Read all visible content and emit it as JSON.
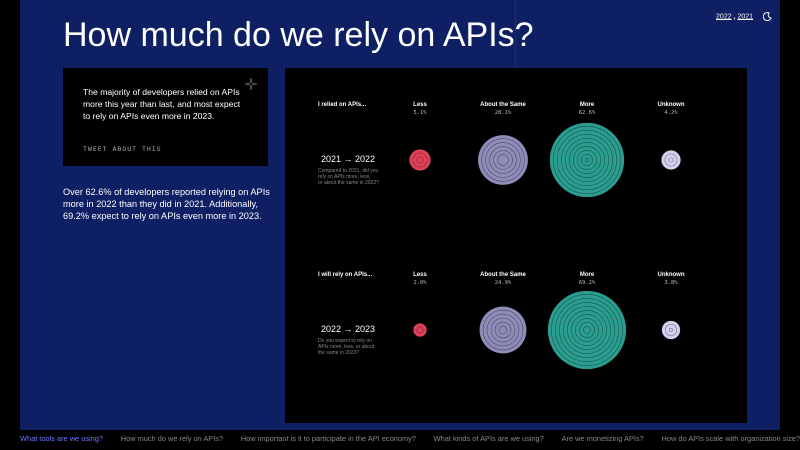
{
  "header": {
    "years": [
      "2022",
      "2021"
    ],
    "separator": ","
  },
  "title": "How much do we rely on APIs?",
  "callout": {
    "text": "The majority of developers relied on APIs more this year than last, and most expect to rely on APIs even more in 2023.",
    "link": "TWEET ABOUT THIS"
  },
  "summary": "Over 62.6% of developers reported relying on APIs more in 2022 than they did in 2021. Additionally, 69.2% expect to rely on APIs even more in 2023.",
  "chart_data": [
    {
      "type": "bubble",
      "label": "I relied on APIs...",
      "period": "2021 → 2022",
      "question": "Compared to 2021, did you rely on APIs more, less, or about the same in 2022?",
      "categories": [
        "Less",
        "About the Same",
        "More",
        "Unknown"
      ],
      "values": [
        5.1,
        28.1,
        62.6,
        4.2
      ],
      "value_labels": [
        "5.1%",
        "28.1%",
        "62.6%",
        "4.2%"
      ],
      "colors": [
        "#e0405a",
        "#8e8cb8",
        "#2a9d8f",
        "#d2d0f0"
      ]
    },
    {
      "type": "bubble",
      "label": "I will rely on APIs...",
      "period": "2022 → 2023",
      "question": "Do you expect to rely on APIs more, less, or about the same in 2023?",
      "categories": [
        "Less",
        "About the Same",
        "More",
        "Unknown"
      ],
      "values": [
        2.0,
        24.9,
        69.2,
        3.8
      ],
      "value_labels": [
        "2.0%",
        "24.9%",
        "69.2%",
        "3.8%"
      ],
      "colors": [
        "#e0405a",
        "#8e8cb8",
        "#2a9d8f",
        "#d2d0f0"
      ]
    }
  ],
  "nav": [
    "What tools are we using?",
    "How much do we rely on APIs?",
    "How important is it to participate in the API economy?",
    "What kinds of APIs are we using?",
    "Are we monetizing APIs?",
    "How do APIs scale with organization size?"
  ]
}
